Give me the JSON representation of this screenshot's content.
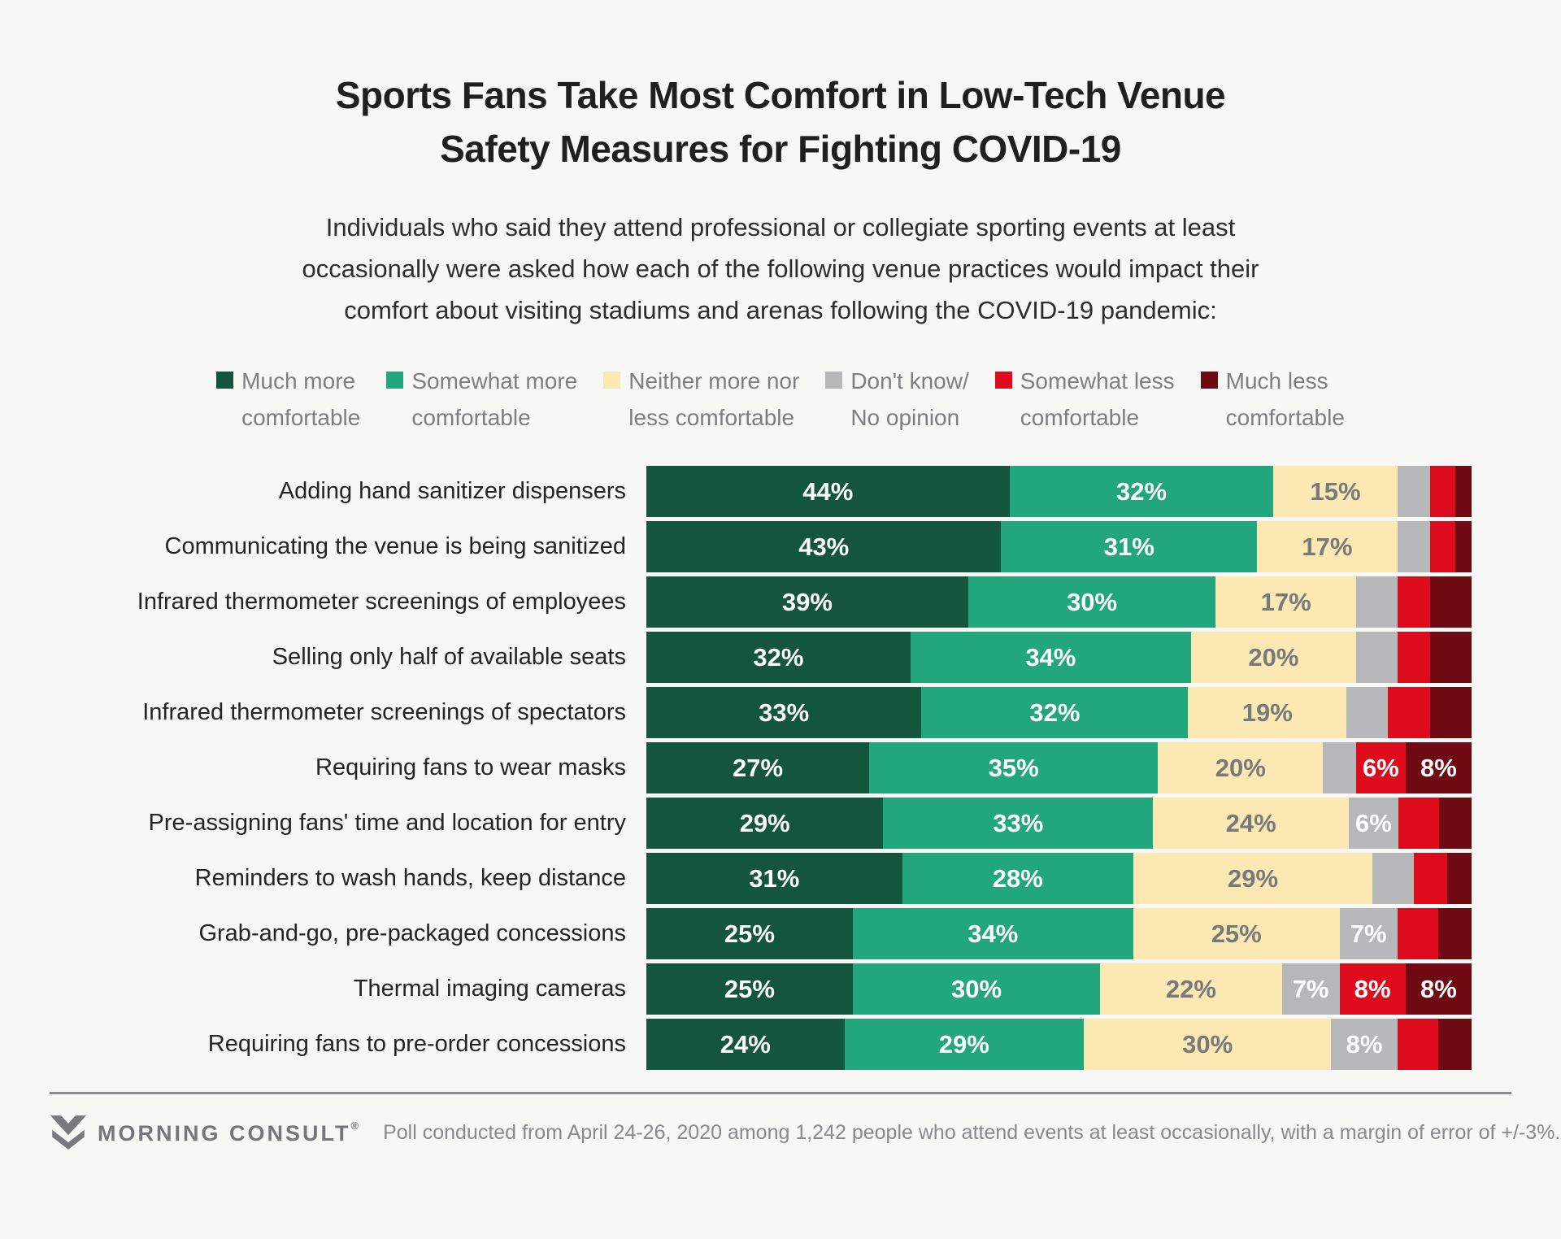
{
  "title": {
    "lines": [
      "Sports Fans Take Most Comfort in Low-Tech Venue",
      "Safety Measures for Fighting COVID-19"
    ]
  },
  "subtitle": {
    "lines": [
      "Individuals who said they attend professional or collegiate sporting events at least",
      "occasionally were asked how each of the following venue practices would impact their",
      "comfort about visiting stadiums and arenas following the COVID-19 pandemic:"
    ]
  },
  "legend": {
    "items": [
      {
        "line1": "Much more",
        "line2": "comfortable",
        "color": "#14553E"
      },
      {
        "line1": "Somewhat more",
        "line2": "comfortable",
        "color": "#21A77B"
      },
      {
        "line1": "Neither more nor",
        "line2": "less comfortable",
        "color": "#FBE8B2"
      },
      {
        "line1": "Don't know/",
        "line2": "No opinion",
        "color": "#B6B7B9"
      },
      {
        "line1": "Somewhat less",
        "line2": "comfortable",
        "color": "#DE0B1C"
      },
      {
        "line1": "Much less",
        "line2": "comfortable",
        "color": "#6F0A12"
      }
    ]
  },
  "chart_data": {
    "type": "bar",
    "stacked": true,
    "orientation": "horizontal",
    "unit": "%",
    "axis_range": [
      0,
      100
    ],
    "grid": false,
    "value_label_min_shown": 6,
    "categories": [
      "Adding hand sanitizer dispensers",
      "Communicating the venue is being sanitized",
      "Infrared thermometer screenings of employees",
      "Selling only half of available seats",
      "Infrared thermometer screenings of spectators",
      "Requiring fans to wear masks",
      "Pre-assigning fans' time and location for entry",
      "Reminders to wash hands, keep distance",
      "Grab-and-go, pre-packaged concessions",
      "Thermal imaging cameras",
      "Requiring fans to pre-order concessions"
    ],
    "series": [
      {
        "name": "Much more comfortable",
        "color": "#14553E",
        "label_color": "#FFFFFF",
        "values": [
          44,
          43,
          39,
          32,
          33,
          27,
          29,
          31,
          25,
          25,
          24
        ]
      },
      {
        "name": "Somewhat more comfortable",
        "color": "#21A77B",
        "label_color": "#FFFFFF",
        "values": [
          32,
          31,
          30,
          34,
          32,
          35,
          33,
          28,
          34,
          30,
          29
        ]
      },
      {
        "name": "Neither more nor less comfortable",
        "color": "#FBE8B2",
        "label_color": "#77797B",
        "values": [
          15,
          17,
          17,
          20,
          19,
          20,
          24,
          29,
          25,
          22,
          30
        ]
      },
      {
        "name": "Don't know/No opinion",
        "color": "#B6B7B9",
        "label_color": "#FFFFFF",
        "values": [
          4,
          4,
          5,
          5,
          5,
          4,
          6,
          5,
          7,
          7,
          8
        ]
      },
      {
        "name": "Somewhat less comfortable",
        "color": "#DE0B1C",
        "label_color": "#FFFFFF",
        "values": [
          3,
          3,
          4,
          4,
          5,
          6,
          5,
          4,
          5,
          8,
          5
        ]
      },
      {
        "name": "Much less comfortable",
        "color": "#6F0A12",
        "label_color": "#FFFFFF",
        "values": [
          2,
          2,
          5,
          5,
          5,
          8,
          4,
          3,
          4,
          8,
          4
        ]
      }
    ]
  },
  "footer": {
    "brand": "MORNING CONSULT",
    "reg": "®",
    "note": "Poll conducted from April 24-26, 2020 among 1,242 people who attend events at least occasionally, with a margin of error of +/-3%."
  }
}
